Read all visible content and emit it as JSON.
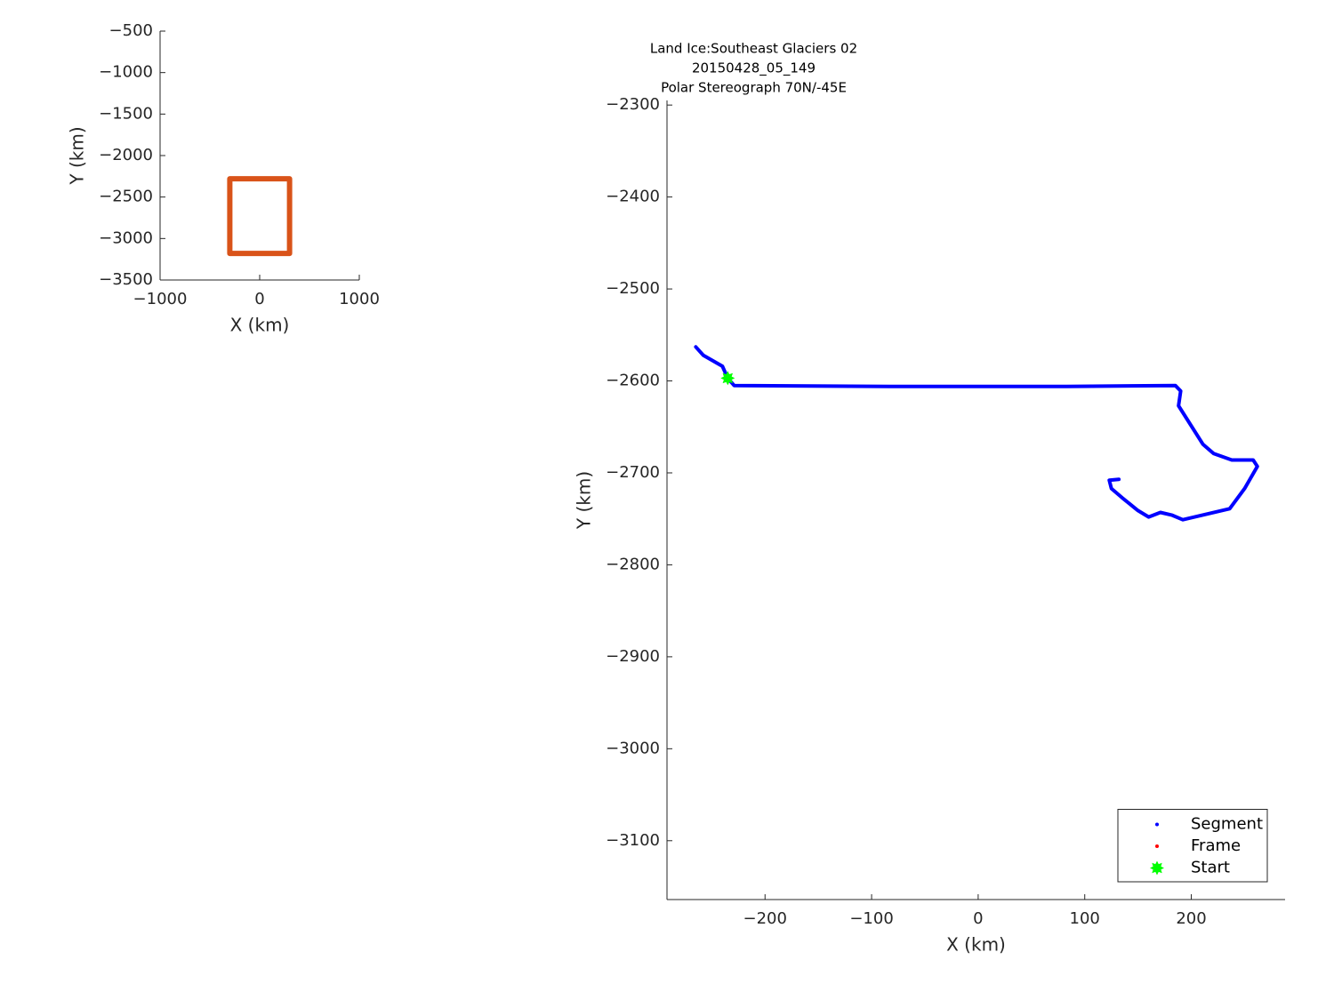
{
  "chart_data": [
    {
      "type": "line",
      "x_label": "X (km)",
      "y_label": "Y (km)",
      "xlim": [
        -1000,
        1000
      ],
      "xticks": [
        {
          "value": -1000,
          "label": "−1000"
        },
        0,
        1000
      ],
      "ylim": [
        -3500,
        -500
      ],
      "yticks": [
        {
          "value": -500,
          "label": "−500"
        },
        {
          "value": -1000,
          "label": "−1000"
        },
        {
          "value": -1500,
          "label": "−1500"
        },
        {
          "value": -2000,
          "label": "−2000"
        },
        {
          "value": -2500,
          "label": "−2500"
        },
        {
          "value": -3000,
          "label": "−3000"
        },
        {
          "value": -3500,
          "label": "−3500"
        }
      ],
      "series": [
        {
          "color": "#d95319",
          "style": "line",
          "x": [
            -300,
            300,
            300,
            -300,
            -300
          ],
          "y": [
            -2280,
            -2280,
            -3180,
            -3180,
            -2280
          ]
        }
      ]
    },
    {
      "type": "line",
      "title": [
        "Land Ice:Southeast  Glaciers 02",
        "20150428_05_149",
        "Polar Stereograph 70N/-45E"
      ],
      "x_label": "X (km)",
      "y_label": "Y (km)",
      "xlim": [
        -292,
        288
      ],
      "xticks": [
        {
          "value": -200,
          "label": "−200"
        },
        {
          "value": -100,
          "label": "−100"
        },
        0,
        100,
        200
      ],
      "ylim": [
        -3164,
        -2295
      ],
      "yticks": [
        {
          "value": -2300,
          "label": "−2300"
        },
        {
          "value": -2400,
          "label": "−2400"
        },
        {
          "value": -2500,
          "label": "−2500"
        },
        {
          "value": -2600,
          "label": "−2600"
        },
        {
          "value": -2700,
          "label": "−2700"
        },
        {
          "value": -2800,
          "label": "−2800"
        },
        {
          "value": -2900,
          "label": "−2900"
        },
        {
          "value": -3000,
          "label": "−3000"
        },
        {
          "value": -3100,
          "label": "−3100"
        }
      ],
      "legend": "lower right",
      "series": [
        {
          "name": "Segment",
          "color": "#0000ff",
          "style": "line",
          "x": [
            -265,
            -258,
            -240,
            -235,
            -229,
            -83,
            83,
            185,
            190,
            188,
            211,
            221,
            238,
            258,
            262,
            250,
            236,
            192,
            182,
            171,
            160,
            150,
            135,
            125,
            123,
            132
          ],
          "y": [
            -2563,
            -2572,
            -2584,
            -2597,
            -2605,
            -2606,
            -2606,
            -2605,
            -2611,
            -2627,
            -2669,
            -2679,
            -2686,
            -2686,
            -2693,
            -2717,
            -2739,
            -2751,
            -2746,
            -2743,
            -2748,
            -2741,
            -2727,
            -2717,
            -2708,
            -2707
          ]
        },
        {
          "name": "Frame",
          "color": "#ff0000",
          "style": "dot",
          "x": [],
          "y": []
        },
        {
          "name": "Start",
          "color": "#00ff00",
          "style": "marker",
          "x": [
            -235
          ],
          "y": [
            -2597
          ]
        }
      ]
    }
  ]
}
